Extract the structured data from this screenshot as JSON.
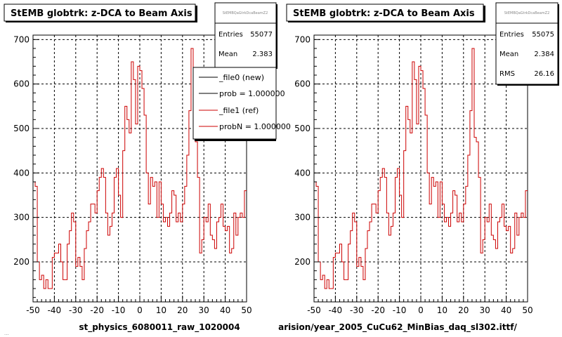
{
  "chart_data": [
    {
      "type": "line",
      "title": "StEMB globtrk: z-DCA to Beam Axis",
      "xlabel": "st_physics_6080011_raw_1020004",
      "xlim": [
        -50,
        50
      ],
      "ylim": [
        110,
        710
      ],
      "x_ticks": [
        "-50",
        "-40",
        "-30",
        "-20",
        "-10",
        "0",
        "10",
        "20",
        "30",
        "40",
        "50"
      ],
      "y_ticks": [
        "200",
        "300",
        "400",
        "500",
        "600",
        "700"
      ],
      "grid": true,
      "stats": {
        "header": "StEMBQaGtrkDcaBeamZ2",
        "entries_label": "Entries",
        "entries": "55077",
        "mean_label": "Mean",
        "mean": "2.383"
      },
      "legend": {
        "placement": "top-right",
        "entries": [
          {
            "label": "_file0 (new)",
            "color": "#000000"
          },
          {
            "label": "prob = 1.000000",
            "color": "#000000"
          },
          {
            "label": "_file1 (ref)",
            "color": "#cc0000"
          },
          {
            "label": "probN = 1.000000",
            "color": "#cc0000"
          }
        ]
      },
      "series": [
        {
          "color": "#cc0000",
          "x0": -50,
          "bin_width": 1,
          "values": [
            380,
            370,
            200,
            160,
            170,
            140,
            160,
            140,
            140,
            210,
            220,
            220,
            240,
            200,
            160,
            160,
            240,
            270,
            310,
            290,
            190,
            210,
            190,
            160,
            230,
            270,
            290,
            330,
            330,
            310,
            360,
            390,
            410,
            390,
            310,
            260,
            280,
            310,
            390,
            410,
            350,
            300,
            450,
            550,
            520,
            490,
            650,
            610,
            510,
            640,
            630,
            590,
            530,
            400,
            330,
            390,
            370,
            380,
            300,
            380,
            330,
            290,
            300,
            280,
            310,
            360,
            350,
            290,
            310,
            290,
            330,
            370,
            440,
            540,
            680,
            480,
            470,
            390,
            220,
            250,
            300,
            290,
            330,
            260,
            250,
            230,
            290,
            300,
            330,
            280,
            270,
            280,
            220,
            230,
            310,
            260,
            300,
            310,
            300,
            360
          ]
        }
      ]
    },
    {
      "type": "line",
      "title": "StEMB globtrk: z-DCA to Beam Axis",
      "xlabel": "arision/year_2005_CuCu62_MinBias_daq_sl302.ittf/",
      "xlim": [
        -50,
        50
      ],
      "ylim": [
        110,
        710
      ],
      "x_ticks": [
        "-50",
        "-40",
        "-30",
        "-20",
        "-10",
        "0",
        "10",
        "20",
        "30",
        "40",
        "50"
      ],
      "y_ticks": [
        "200",
        "300",
        "400",
        "500",
        "600",
        "700"
      ],
      "grid": true,
      "stats": {
        "header": "StEMBQaGtrkDcaBeamZ2",
        "entries_label": "Entries",
        "entries": "55075",
        "mean_label": "Mean",
        "mean": "2.384",
        "rms_label": "RMS",
        "rms": "26.16"
      },
      "series": [
        {
          "color": "#cc0000",
          "x0": -50,
          "bin_width": 1,
          "values": [
            380,
            370,
            200,
            160,
            170,
            140,
            160,
            140,
            140,
            210,
            220,
            220,
            240,
            200,
            160,
            160,
            240,
            270,
            310,
            290,
            190,
            210,
            190,
            160,
            230,
            270,
            290,
            330,
            330,
            310,
            360,
            390,
            410,
            390,
            310,
            260,
            280,
            310,
            390,
            410,
            350,
            300,
            450,
            550,
            520,
            490,
            650,
            610,
            510,
            640,
            630,
            590,
            530,
            400,
            330,
            390,
            370,
            380,
            300,
            380,
            330,
            290,
            300,
            280,
            310,
            360,
            350,
            290,
            310,
            290,
            330,
            370,
            440,
            540,
            680,
            480,
            470,
            390,
            220,
            250,
            300,
            290,
            330,
            260,
            250,
            230,
            290,
            300,
            330,
            280,
            270,
            280,
            220,
            230,
            310,
            260,
            300,
            310,
            300,
            360
          ]
        }
      ]
    }
  ],
  "footer_left": "..."
}
